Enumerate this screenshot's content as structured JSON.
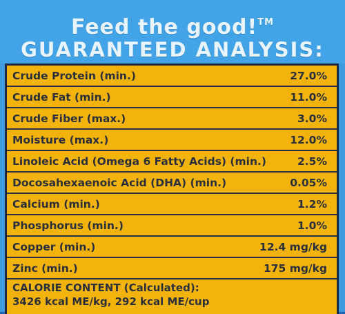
{
  "header": {
    "tagline": "Feed the good!",
    "tm": "TM",
    "title": "GUARANTEED ANALYSIS:"
  },
  "analysis": [
    {
      "name": "Crude Protein (min.)",
      "value": "27.0%"
    },
    {
      "name": "Crude Fat (min.)",
      "value": "11.0%"
    },
    {
      "name": "Crude Fiber (max.)",
      "value": "3.0%"
    },
    {
      "name": "Moisture (max.)",
      "value": "12.0%"
    },
    {
      "name": "Linoleic Acid (Omega 6 Fatty Acids) (min.)",
      "value": "2.5%"
    },
    {
      "name": "Docosahexaenoic Acid (DHA) (min.)",
      "value": "0.05%"
    },
    {
      "name": "Calcium (min.)",
      "value": "1.2%"
    },
    {
      "name": "Phosphorus (min.)",
      "value": "1.0%"
    },
    {
      "name": "Copper (min.)",
      "value": "12.4 mg/kg"
    },
    {
      "name": "Zinc (min.)",
      "value": "175 mg/kg"
    }
  ],
  "calorie": {
    "title": "CALORIE CONTENT (Calculated):",
    "value": "3426 kcal ME/kg, 292 kcal ME/cup"
  }
}
